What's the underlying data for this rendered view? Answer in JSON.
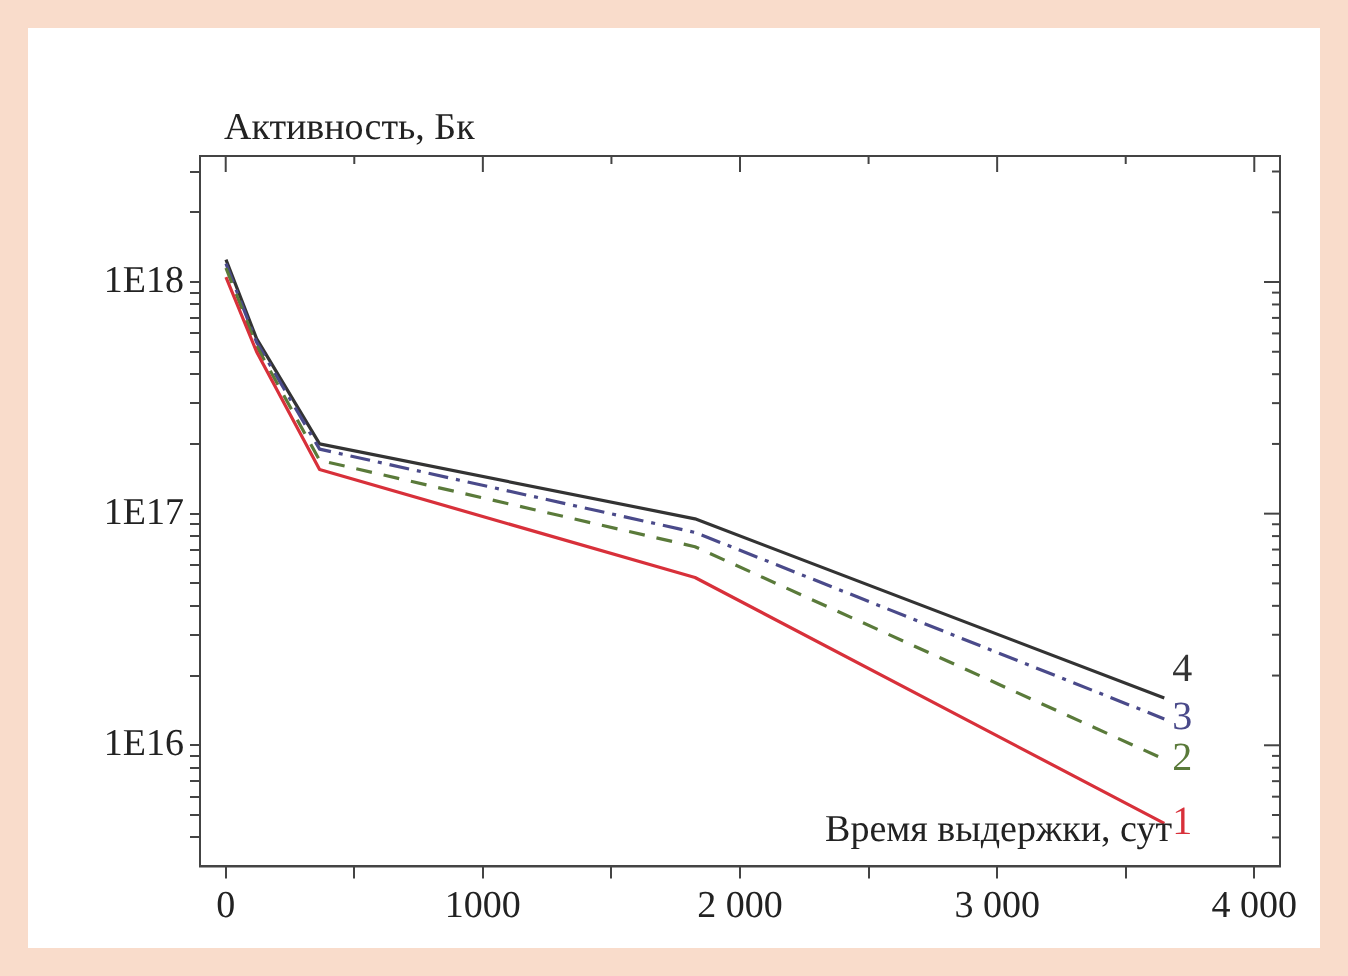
{
  "chart_data": {
    "type": "line",
    "ylabel": "Активность, Бк",
    "xlabel": "Время выдержки, сут",
    "x": [
      1,
      120,
      365,
      1825,
      3650
    ],
    "series": [
      {
        "name": "1",
        "color": "#d8303a",
        "line_style": "solid",
        "values": [
          1.05e+18,
          5e+17,
          1.55e+17,
          5.3e+16,
          4600000000000000.0
        ]
      },
      {
        "name": "2",
        "color": "#5a7a3a",
        "line_style": "dashed",
        "values": [
          1.15e+18,
          5.3e+17,
          1.7e+17,
          7.2e+16,
          8700000000000000.0
        ]
      },
      {
        "name": "3",
        "color": "#4a4a8a",
        "line_style": "dashdot",
        "values": [
          1.2e+18,
          5.5e+17,
          1.9e+17,
          8.3e+16,
          1.3e+16
        ]
      },
      {
        "name": "4",
        "color": "#333333",
        "line_style": "solid",
        "values": [
          1.25e+18,
          5.7e+17,
          2e+17,
          9.5e+16,
          1.6e+16
        ]
      }
    ],
    "log": "y",
    "xlim": [
      -100,
      4100
    ],
    "ylim": [
      3000000000000000.0,
      3.5e+18
    ],
    "xticks": [
      0,
      {
        "value": 500,
        "label": null
      },
      1000,
      {
        "value": 1500,
        "label": null
      },
      {
        "value": 2000,
        "label": "2 000"
      },
      {
        "value": 2500,
        "label": null
      },
      {
        "value": 3000,
        "label": "3 000"
      },
      {
        "value": 3500,
        "label": null
      },
      {
        "value": 4000,
        "label": "4 000"
      }
    ],
    "yticks": [
      {
        "value": 4000000000000000.0,
        "label": null
      },
      {
        "value": 5000000000000000.0,
        "label": null
      },
      {
        "value": 6000000000000000.0,
        "label": null
      },
      {
        "value": 7000000000000000.0,
        "label": null
      },
      {
        "value": 8000000000000000.0,
        "label": null
      },
      {
        "value": 9000000000000000.0,
        "label": null
      },
      {
        "value": 1e+16,
        "label": "1E16"
      },
      {
        "value": 2e+16,
        "label": null
      },
      {
        "value": 3e+16,
        "label": null
      },
      {
        "value": 4e+16,
        "label": null
      },
      {
        "value": 5e+16,
        "label": null
      },
      {
        "value": 6e+16,
        "label": null
      },
      {
        "value": 7e+16,
        "label": null
      },
      {
        "value": 8e+16,
        "label": null
      },
      {
        "value": 9e+16,
        "label": null
      },
      {
        "value": 1e+17,
        "label": "1E17"
      },
      {
        "value": 2e+17,
        "label": null
      },
      {
        "value": 3e+17,
        "label": null
      },
      {
        "value": 4e+17,
        "label": null
      },
      {
        "value": 5e+17,
        "label": null
      },
      {
        "value": 6e+17,
        "label": null
      },
      {
        "value": 7e+17,
        "label": null
      },
      {
        "value": 8e+17,
        "label": null
      },
      {
        "value": 9e+17,
        "label": null
      },
      {
        "value": 1e+18,
        "label": "1E18"
      },
      {
        "value": 2e+18,
        "label": null
      },
      {
        "value": 3e+18,
        "label": null
      }
    ],
    "grid": false,
    "legend": false,
    "marker": "none"
  }
}
